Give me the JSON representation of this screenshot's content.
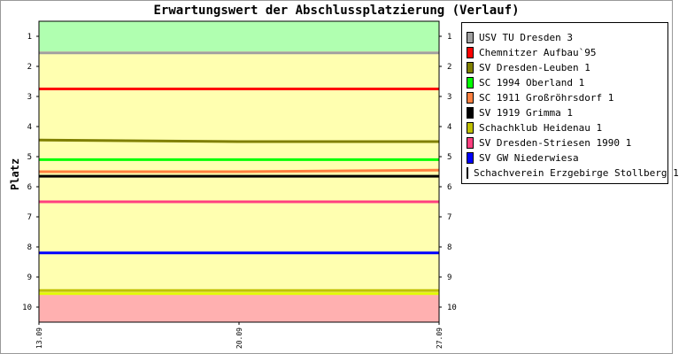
{
  "chart_data": {
    "type": "line",
    "title": "Erwartungswert der Abschlussplatzierung (Verlauf)",
    "ylabel": "Platz",
    "xlabel": "",
    "y_ticks": [
      "1",
      "2",
      "3",
      "4",
      "5",
      "6",
      "7",
      "8",
      "9",
      "10"
    ],
    "x_ticks": [
      "13.09",
      "20.09",
      "27.09"
    ],
    "ylim": [
      0.5,
      10.5
    ],
    "y_inverted": true,
    "grid": false,
    "legend_position": "right",
    "zones": [
      {
        "from": 0.5,
        "to": 1.5,
        "color": "#b0ffb0"
      },
      {
        "from": 1.5,
        "to": 9.5,
        "color": "#ffffb0"
      },
      {
        "from": 9.5,
        "to": 10.5,
        "color": "#ffb0b0"
      }
    ],
    "series": [
      {
        "name": "USV TU Dresden 3",
        "color": "#a0a0a0",
        "values": [
          1.55,
          1.55,
          1.55
        ]
      },
      {
        "name": "Chemnitzer Aufbau`95",
        "color": "#ff0000",
        "values": [
          2.75,
          2.75,
          2.75
        ]
      },
      {
        "name": "SV Dresden-Leuben 1",
        "color": "#808000",
        "values": [
          4.45,
          4.5,
          4.5
        ]
      },
      {
        "name": "SC 1994 Oberland 1",
        "color": "#00ff00",
        "values": [
          5.1,
          5.1,
          5.1
        ]
      },
      {
        "name": "SC 1911 Großröhrsdorf 1",
        "color": "#ff8040",
        "values": [
          5.5,
          5.5,
          5.45
        ]
      },
      {
        "name": "SV 1919 Grimma 1",
        "color": "#000000",
        "values": [
          5.65,
          5.65,
          5.65
        ]
      },
      {
        "name": "Schachklub Heidenau 1",
        "color": "#c0c000",
        "values": [
          9.45,
          9.45,
          9.45
        ]
      },
      {
        "name": "SV Dresden-Striesen 1990 1",
        "color": "#ff4080",
        "values": [
          6.5,
          6.5,
          6.5
        ]
      },
      {
        "name": "SV GW Niederwiesa",
        "color": "#0000ff",
        "values": [
          8.2,
          8.2,
          8.2
        ]
      },
      {
        "name": "Schachverein Erzgebirge Stollberg 1",
        "color": "#e0ff00",
        "values": [
          9.55,
          9.55,
          9.55
        ]
      }
    ]
  }
}
